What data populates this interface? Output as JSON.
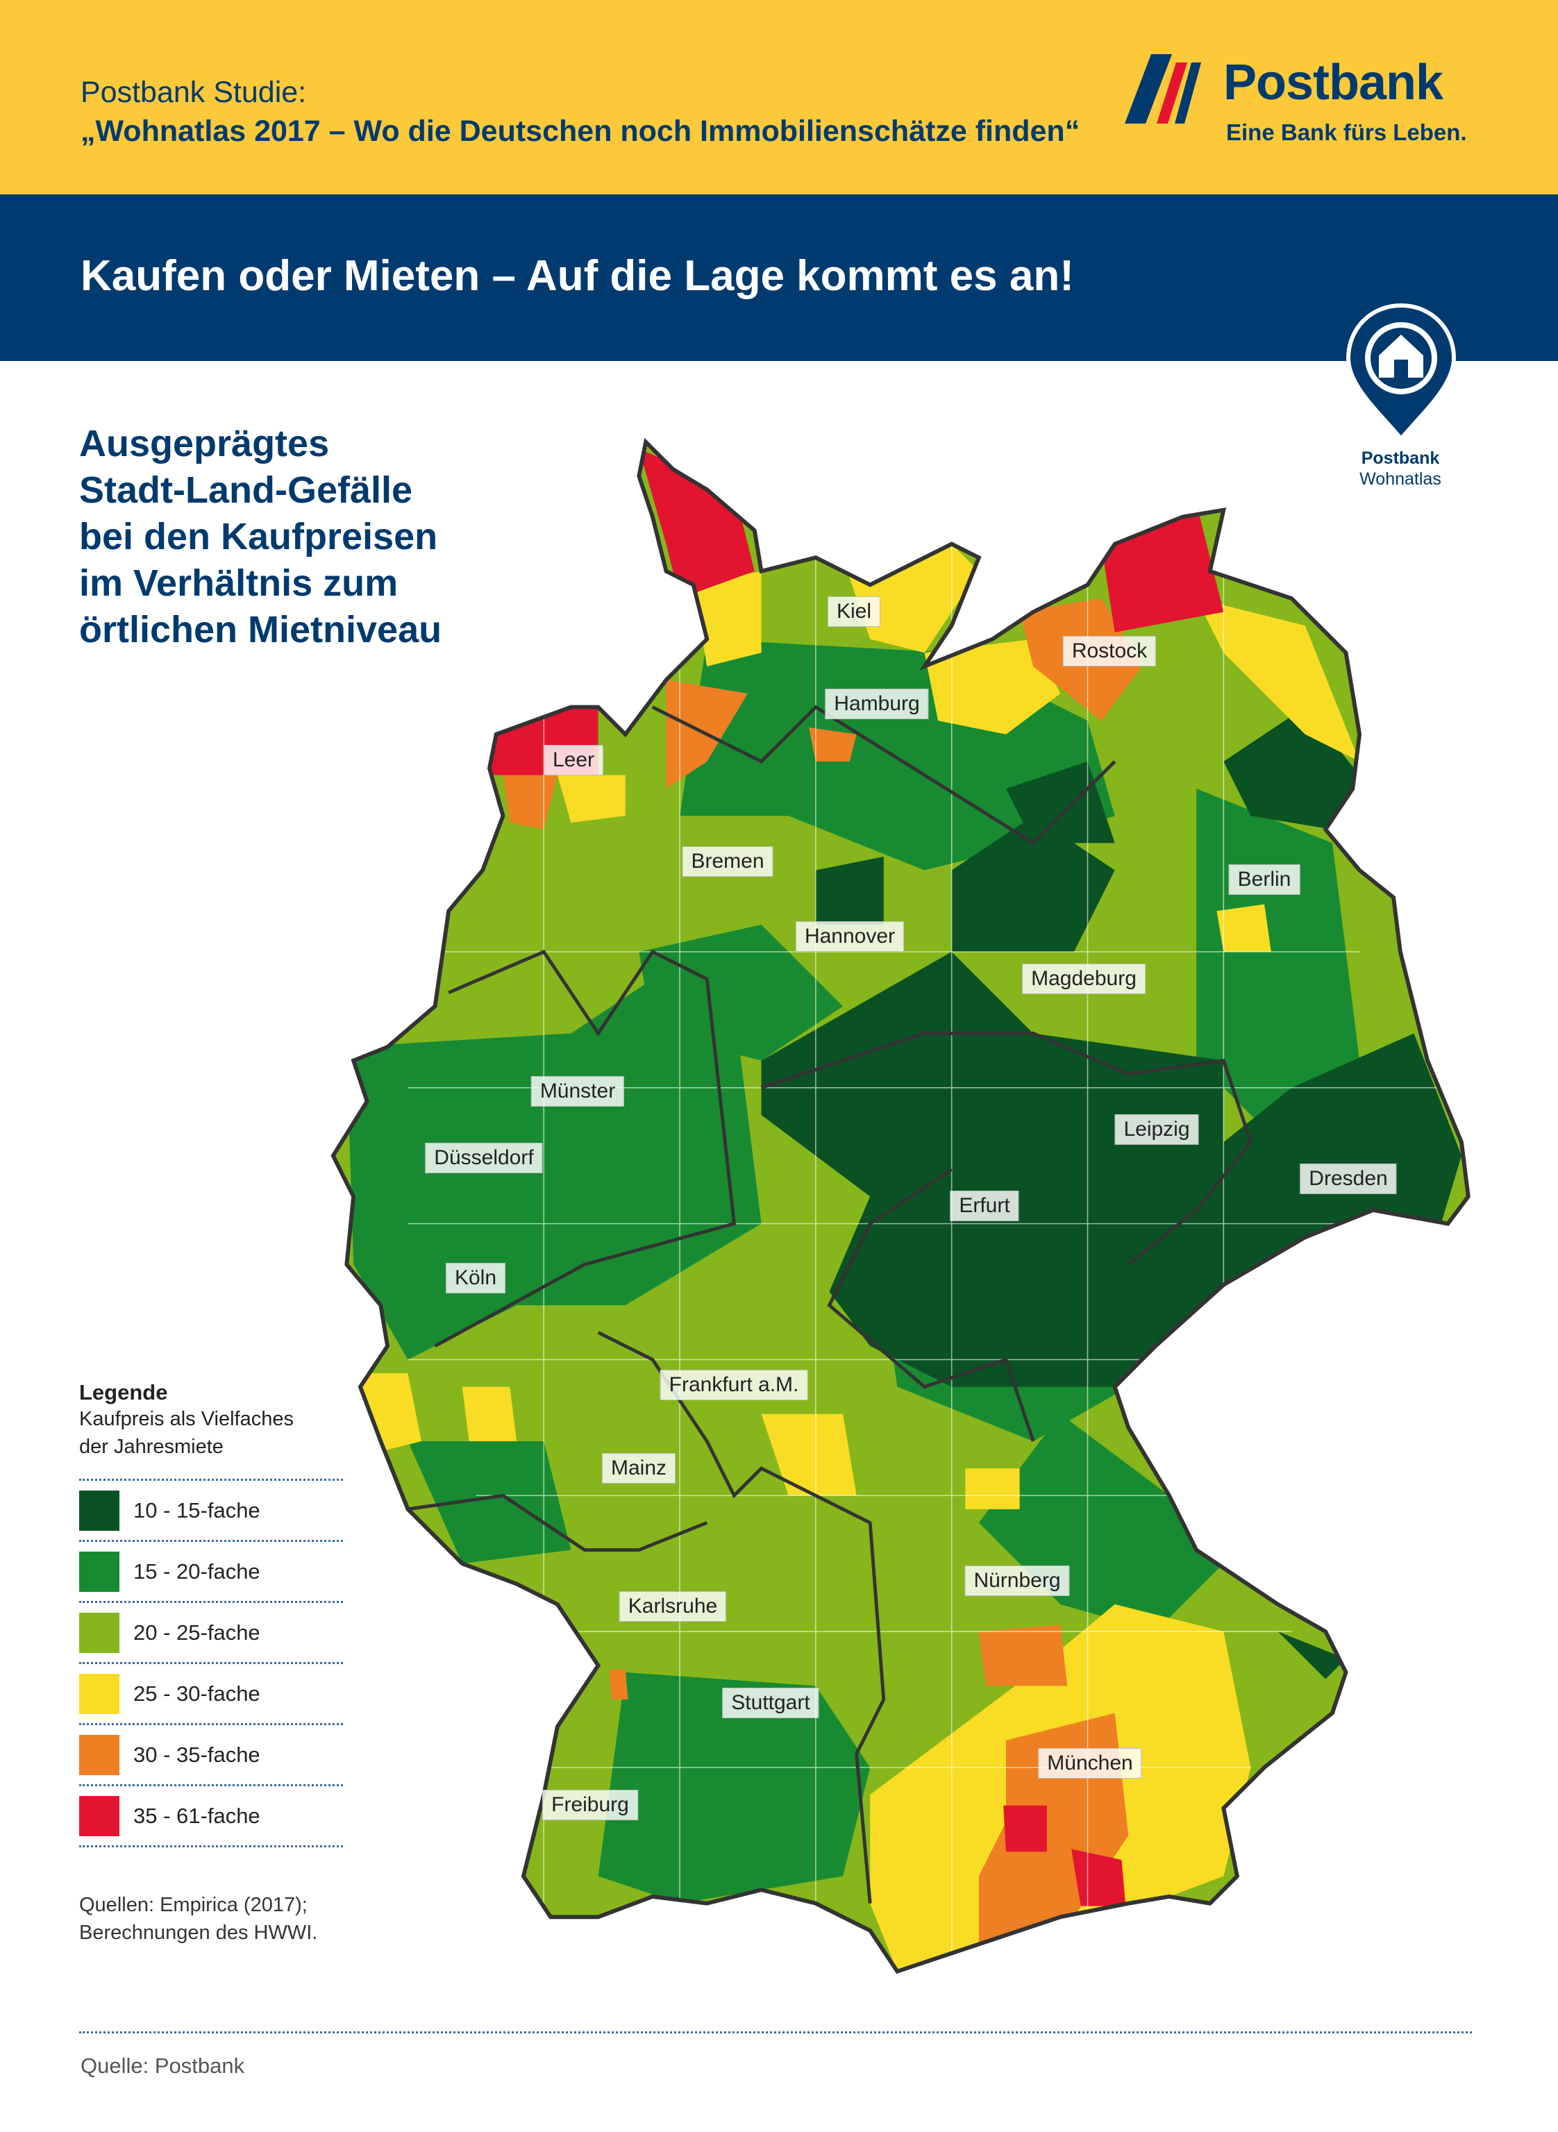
{
  "header": {
    "study_label": "Postbank Studie:",
    "study_title": "„Wohnatlas 2017 – Wo die Deutschen noch Immobilienschätze finden“",
    "logo_name": "Postbank",
    "logo_tagline": "Eine Bank fürs Leben."
  },
  "banner": {
    "title": "Kaufen oder Mieten – Auf die Lage kommt es an!"
  },
  "badge": {
    "line1": "Postbank",
    "line2": "Wohnatlas",
    "icon": "house-pin-icon"
  },
  "headline": [
    "Ausgeprägtes",
    "Stadt-Land-Gefälle",
    "bei den Kaufpreisen",
    "im Verhältnis zum",
    "örtlichen Mietniveau"
  ],
  "cities": [
    "Kiel",
    "Rostock",
    "Hamburg",
    "Leer",
    "Bremen",
    "Berlin",
    "Hannover",
    "Magdeburg",
    "Münster",
    "Leipzig",
    "Düsseldorf",
    "Dresden",
    "Erfurt",
    "Köln",
    "Frankfurt a.M.",
    "Mainz",
    "Nürnberg",
    "Karlsruhe",
    "Stuttgart",
    "München",
    "Freiburg"
  ],
  "legend": {
    "title": "Legende",
    "subtitle_1": "Kaufpreis als Vielfaches",
    "subtitle_2": "der Jahresmiete",
    "items": [
      {
        "label": "10 - 15-fache",
        "color": "#0a5224"
      },
      {
        "label": "15 - 20-fache",
        "color": "#188b32"
      },
      {
        "label": "20 - 25-fache",
        "color": "#86b61b"
      },
      {
        "label": "25 - 30-fache",
        "color": "#f8dd24"
      },
      {
        "label": "30 - 35-fache",
        "color": "#ee7f22"
      },
      {
        "label": "35 - 61-fache",
        "color": "#e31430"
      }
    ]
  },
  "sources": {
    "line1": "Quellen: Empirica (2017);",
    "line2": "Berechnungen des HWWI."
  },
  "footer": {
    "source": "Quelle: Postbank"
  },
  "colors": {
    "yellow": "#fcc93a",
    "navy": "#003a6e"
  }
}
